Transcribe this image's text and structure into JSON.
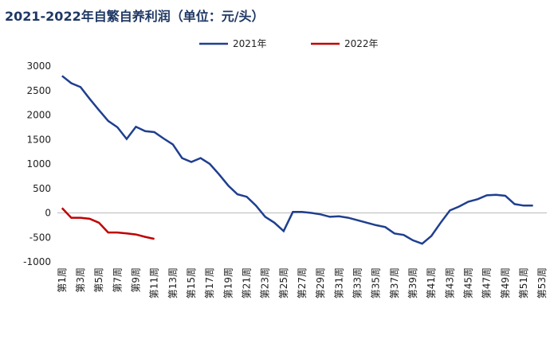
{
  "chart_data": {
    "type": "line",
    "title": "2021-2022年自繁自养利润（单位：元/头）",
    "categories": [
      "第1周",
      null,
      "第3周",
      null,
      "第5周",
      null,
      "第7周",
      null,
      "第9周",
      null,
      "第11周",
      null,
      "第13周",
      null,
      "第15周",
      null,
      "第17周",
      null,
      "第19周",
      null,
      "第21周",
      null,
      "第23周",
      null,
      "第25周",
      null,
      "第27周",
      null,
      "第29周",
      null,
      "第31周",
      null,
      "第33周",
      null,
      "第35周",
      null,
      "第37周",
      null,
      "第39周",
      null,
      "第41周",
      null,
      "第43周",
      null,
      "第45周",
      null,
      "第47周",
      null,
      "第49周",
      null,
      "第51周",
      null,
      "第53周"
    ],
    "series": [
      {
        "name": "2021年",
        "color": "#1f3f8f",
        "values": [
          2800,
          2650,
          2570,
          2330,
          2100,
          1880,
          1750,
          1510,
          1760,
          1670,
          1650,
          1520,
          1400,
          1120,
          1040,
          1120,
          1000,
          790,
          560,
          380,
          330,
          150,
          -80,
          -200,
          -370,
          20,
          20,
          0,
          -30,
          -80,
          -70,
          -100,
          -150,
          -200,
          -250,
          -290,
          -420,
          -450,
          -560,
          -630,
          -470,
          -200,
          50,
          130,
          230,
          280,
          360,
          370,
          350,
          180,
          150,
          150,
          null
        ]
      },
      {
        "name": "2022年",
        "color": "#c00000",
        "values": [
          100,
          -100,
          -100,
          -120,
          -200,
          -400,
          -400,
          -420,
          -440,
          -490,
          -530,
          null,
          null,
          null,
          null,
          null,
          null,
          null,
          null,
          null,
          null,
          null,
          null,
          null,
          null,
          null,
          null,
          null,
          null,
          null,
          null,
          null,
          null,
          null,
          null,
          null,
          null,
          null,
          null,
          null,
          null,
          null,
          null,
          null,
          null,
          null,
          null,
          null,
          null,
          null,
          null,
          null,
          null
        ]
      }
    ],
    "ylim": [
      -1000,
      3000
    ],
    "yticks": [
      -1000,
      -500,
      0,
      500,
      1000,
      1500,
      2000,
      2500,
      3000
    ]
  }
}
